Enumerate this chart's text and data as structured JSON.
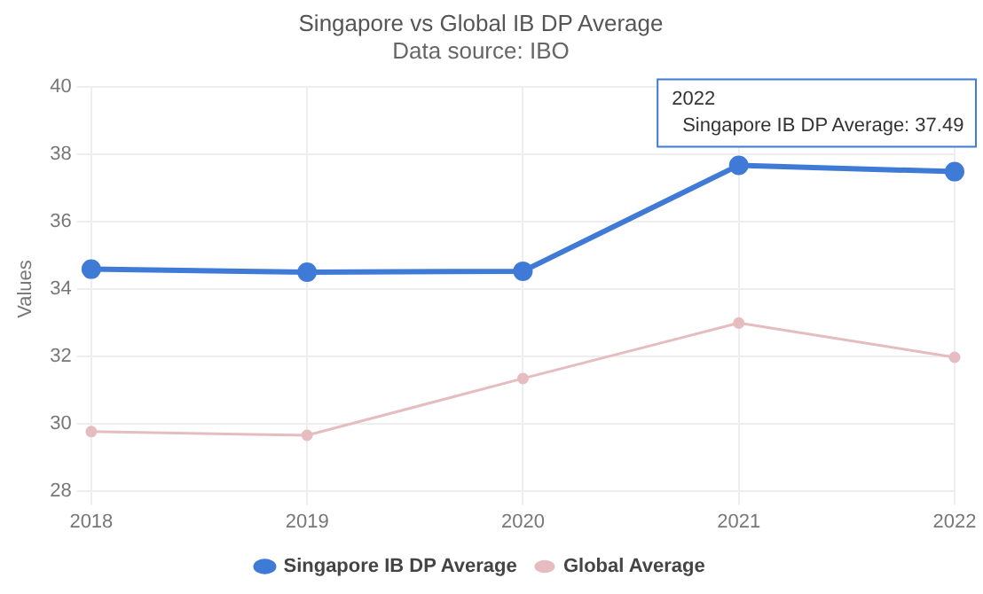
{
  "chart_data": {
    "type": "line",
    "title": "Singapore vs Global IB DP Average",
    "subtitle": "Data source: IBO",
    "ylabel": "Values",
    "categories": [
      "2018",
      "2019",
      "2020",
      "2021",
      "2022"
    ],
    "series": [
      {
        "name": "Singapore IB DP Average",
        "color": "#3f7bd6",
        "values": [
          34.59,
          34.5,
          34.53,
          37.68,
          37.49
        ]
      },
      {
        "name": "Global Average",
        "color": "#e5bcc0",
        "values": [
          29.76,
          29.65,
          31.34,
          32.99,
          31.97
        ]
      }
    ],
    "ylim": [
      28,
      40
    ],
    "yticks": [
      28,
      30,
      32,
      34,
      36,
      38,
      40
    ],
    "grid": true,
    "legend": "bottom",
    "marker": "circle",
    "line_style": "solid",
    "annotations": [
      {
        "text": "2022\nSingapore IB DP Average: 37.49",
        "x": "2022",
        "y": 37.49
      }
    ]
  }
}
